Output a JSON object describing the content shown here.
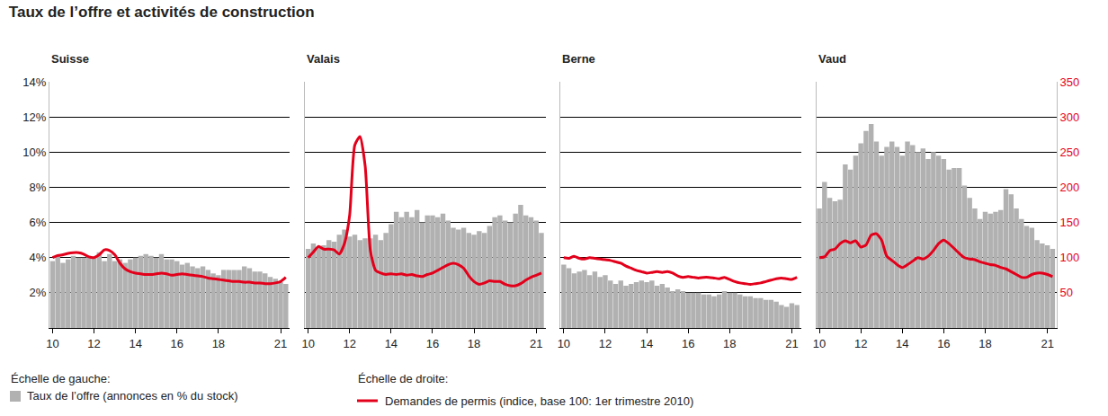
{
  "title": "Taux de l’offre et activités de construction",
  "y_label": "Échelle de gauche:",
  "y2_label": "Échelle de droite:",
  "chart_data": [
    {
      "type": "bar",
      "title": "Suisse",
      "x": [
        10,
        10.25,
        10.5,
        10.75,
        11,
        11.25,
        11.5,
        11.75,
        12,
        12.25,
        12.5,
        12.75,
        13,
        13.25,
        13.5,
        13.75,
        14,
        14.25,
        14.5,
        14.75,
        15,
        15.25,
        15.5,
        15.75,
        16,
        16.25,
        16.5,
        16.75,
        17,
        17.25,
        17.5,
        17.75,
        18,
        18.25,
        18.5,
        18.75,
        19,
        19.25,
        19.5,
        19.75,
        20,
        20.25,
        20.5,
        20.75,
        21,
        21.25
      ],
      "series": [
        {
          "name": "Taux de l’offre (annonces en % du stock)",
          "type": "bar",
          "color": "#b1b1b1",
          "values": [
            3.8,
            4.1,
            3.7,
            3.9,
            4.1,
            4.0,
            4.0,
            4.1,
            4.0,
            4.3,
            3.8,
            4.2,
            3.8,
            3.9,
            3.7,
            3.9,
            4.0,
            4.1,
            4.2,
            4.1,
            4.0,
            4.2,
            3.9,
            3.9,
            3.8,
            3.6,
            3.7,
            3.5,
            3.4,
            3.5,
            3.3,
            3.1,
            3.0,
            3.3,
            3.3,
            3.3,
            3.3,
            3.5,
            3.4,
            3.2,
            3.2,
            3.1,
            2.9,
            2.8,
            2.6,
            2.5
          ]
        },
        {
          "name": "Demandes de permis (indice, base 100: 1er trimestre 2010)",
          "type": "line",
          "axis": "y2",
          "color": "#e3001b",
          "values": [
            100,
            103,
            104,
            106,
            107,
            107,
            105,
            101,
            100,
            104,
            111,
            110,
            104,
            92,
            84,
            80,
            78,
            77,
            76,
            76,
            77,
            78,
            77,
            75,
            76,
            77,
            76,
            75,
            74,
            73,
            71,
            70,
            69,
            68,
            67,
            66,
            66,
            65,
            65,
            64,
            64,
            63,
            63,
            64,
            66,
            72
          ]
        }
      ],
      "xlim": [
        9.85,
        21.45
      ],
      "xticks": [
        10,
        12,
        14,
        16,
        18,
        21
      ],
      "ylim": [
        0,
        14
      ],
      "yticks": [
        {
          "value": 2,
          "label": "2%"
        },
        {
          "value": 4,
          "label": "4%"
        },
        {
          "value": 6,
          "label": "6%"
        },
        {
          "value": 8,
          "label": "8%"
        },
        {
          "value": 10,
          "label": "10%"
        },
        {
          "value": 12,
          "label": "12%"
        },
        {
          "value": 14,
          "label": "14%"
        }
      ],
      "y2lim": [
        0,
        350
      ],
      "grid": true
    },
    {
      "type": "bar",
      "title": "Valais",
      "x": [
        10,
        10.25,
        10.5,
        10.75,
        11,
        11.25,
        11.5,
        11.75,
        12,
        12.25,
        12.5,
        12.75,
        13,
        13.25,
        13.5,
        13.75,
        14,
        14.25,
        14.5,
        14.75,
        15,
        15.25,
        15.5,
        15.75,
        16,
        16.25,
        16.5,
        16.75,
        17,
        17.25,
        17.5,
        17.75,
        18,
        18.25,
        18.5,
        18.75,
        19,
        19.25,
        19.5,
        19.75,
        20,
        20.25,
        20.5,
        20.75,
        21,
        21.25
      ],
      "series": [
        {
          "name": "Taux de l’offre (annonces en % du stock)",
          "type": "bar",
          "color": "#b1b1b1",
          "values": [
            4.5,
            4.8,
            4.6,
            4.7,
            5.0,
            4.9,
            5.3,
            5.6,
            5.2,
            5.3,
            5.0,
            5.1,
            5.1,
            5.3,
            5.0,
            5.4,
            5.9,
            6.6,
            6.3,
            6.6,
            6.3,
            6.7,
            6.0,
            6.4,
            6.4,
            6.3,
            6.5,
            6.1,
            5.7,
            5.6,
            5.7,
            5.4,
            5.3,
            5.5,
            5.4,
            5.8,
            6.3,
            6.4,
            6.1,
            6.0,
            6.5,
            7.0,
            6.4,
            6.3,
            6.1,
            5.4
          ]
        },
        {
          "name": "Demandes de permis (indice, base 100: 1er trimestre 2010)",
          "type": "line",
          "axis": "y2",
          "color": "#e3001b",
          "values": [
            100,
            108,
            116,
            112,
            112,
            111,
            105,
            120,
            160,
            260,
            272,
            230,
            110,
            82,
            78,
            76,
            77,
            76,
            77,
            75,
            76,
            74,
            73,
            76,
            78,
            82,
            86,
            90,
            92,
            90,
            85,
            74,
            66,
            62,
            64,
            67,
            66,
            66,
            62,
            60,
            60,
            63,
            68,
            72,
            75,
            78
          ]
        }
      ],
      "xlim": [
        9.85,
        21.45
      ],
      "xticks": [
        10,
        12,
        14,
        16,
        18,
        21
      ],
      "ylim": [
        0,
        14
      ],
      "yticks": [
        {
          "value": 2,
          "label": "2%"
        },
        {
          "value": 4,
          "label": "4%"
        },
        {
          "value": 6,
          "label": "6%"
        },
        {
          "value": 8,
          "label": "8%"
        },
        {
          "value": 10,
          "label": "10%"
        },
        {
          "value": 12,
          "label": "12%"
        },
        {
          "value": 14,
          "label": "14%"
        }
      ],
      "y2lim": [
        0,
        350
      ],
      "grid": true,
      "tick_labels": "x"
    },
    {
      "type": "bar",
      "title": "Berne",
      "x": [
        10,
        10.25,
        10.5,
        10.75,
        11,
        11.25,
        11.5,
        11.75,
        12,
        12.25,
        12.5,
        12.75,
        13,
        13.25,
        13.5,
        13.75,
        14,
        14.25,
        14.5,
        14.75,
        15,
        15.25,
        15.5,
        15.75,
        16,
        16.25,
        16.5,
        16.75,
        17,
        17.25,
        17.5,
        17.75,
        18,
        18.25,
        18.5,
        18.75,
        19,
        19.25,
        19.5,
        19.75,
        20,
        20.25,
        20.5,
        20.75,
        21,
        21.25
      ],
      "series": [
        {
          "name": "Taux de l’offre (annonces en % du stock)",
          "type": "bar",
          "color": "#b1b1b1",
          "values": [
            3.6,
            3.4,
            3.1,
            3.2,
            3.3,
            3.0,
            3.2,
            2.9,
            3.0,
            2.7,
            2.5,
            2.7,
            2.4,
            2.5,
            2.6,
            2.7,
            2.6,
            2.7,
            2.4,
            2.5,
            2.3,
            2.1,
            2.2,
            2.1,
            2.0,
            2.0,
            2.0,
            1.9,
            1.9,
            1.8,
            1.9,
            2.1,
            2.0,
            2.0,
            1.9,
            1.8,
            1.8,
            1.7,
            1.7,
            1.6,
            1.6,
            1.5,
            1.3,
            1.2,
            1.4,
            1.3
          ]
        },
        {
          "name": "Demandes de permis (indice, base 100: 1er trimestre 2010)",
          "type": "line",
          "axis": "y2",
          "color": "#e3001b",
          "values": [
            100,
            99,
            102,
            99,
            98,
            100,
            99,
            98,
            97,
            96,
            94,
            92,
            88,
            85,
            82,
            80,
            78,
            79,
            80,
            79,
            80,
            78,
            74,
            72,
            73,
            72,
            71,
            72,
            72,
            71,
            70,
            72,
            69,
            66,
            64,
            63,
            62,
            63,
            64,
            66,
            68,
            70,
            71,
            70,
            69,
            72
          ]
        }
      ],
      "xlim": [
        9.85,
        21.45
      ],
      "xticks": [
        10,
        12,
        14,
        16,
        18,
        21
      ],
      "ylim": [
        0,
        14
      ],
      "yticks": [
        {
          "value": 2,
          "label": "2%"
        },
        {
          "value": 4,
          "label": "4%"
        },
        {
          "value": 6,
          "label": "6%"
        },
        {
          "value": 8,
          "label": "8%"
        },
        {
          "value": 10,
          "label": "10%"
        },
        {
          "value": 12,
          "label": "12%"
        },
        {
          "value": 14,
          "label": "14%"
        }
      ],
      "y2lim": [
        0,
        350
      ],
      "grid": true,
      "tick_labels": "x"
    },
    {
      "type": "bar",
      "title": "Vaud",
      "x": [
        10,
        10.25,
        10.5,
        10.75,
        11,
        11.25,
        11.5,
        11.75,
        12,
        12.25,
        12.5,
        12.75,
        13,
        13.25,
        13.5,
        13.75,
        14,
        14.25,
        14.5,
        14.75,
        15,
        15.25,
        15.5,
        15.75,
        16,
        16.25,
        16.5,
        16.75,
        17,
        17.25,
        17.5,
        17.75,
        18,
        18.25,
        18.5,
        18.75,
        19,
        19.25,
        19.5,
        19.75,
        20,
        20.25,
        20.5,
        20.75,
        21,
        21.25
      ],
      "series": [
        {
          "name": "Taux de l’offre (annonces en % du stock)",
          "type": "bar",
          "color": "#b1b1b1",
          "values": [
            6.8,
            8.3,
            7.4,
            7.2,
            7.3,
            9.3,
            9.0,
            9.8,
            10.5,
            11.2,
            11.6,
            10.6,
            9.8,
            10.3,
            10.6,
            10.3,
            9.8,
            10.6,
            10.4,
            10.0,
            10.2,
            9.6,
            10.0,
            9.8,
            9.6,
            9.0,
            9.1,
            9.1,
            8.1,
            7.4,
            6.8,
            6.2,
            6.6,
            6.5,
            6.6,
            6.7,
            7.9,
            7.6,
            6.8,
            6.2,
            5.8,
            5.7,
            5.0,
            4.8,
            4.7,
            4.5
          ]
        },
        {
          "name": "Demandes de permis (indice, base 100: 1er trimestre 2010)",
          "type": "line",
          "axis": "y2",
          "color": "#e3001b",
          "values": [
            100,
            101,
            110,
            112,
            120,
            124,
            121,
            124,
            115,
            118,
            132,
            134,
            125,
            102,
            96,
            90,
            86,
            90,
            95,
            100,
            98,
            102,
            110,
            120,
            125,
            120,
            113,
            106,
            100,
            98,
            97,
            94,
            92,
            90,
            89,
            86,
            84,
            80,
            76,
            72,
            72,
            76,
            78,
            78,
            76,
            73
          ]
        }
      ],
      "xlim": [
        9.85,
        21.45
      ],
      "xticks": [
        10,
        12,
        14,
        16,
        18,
        21
      ],
      "ylim": [
        0,
        14
      ],
      "y2lim": [
        0,
        350
      ],
      "y2ticks": [
        50,
        100,
        150,
        200,
        250,
        300,
        350
      ],
      "grid": true
    }
  ]
}
